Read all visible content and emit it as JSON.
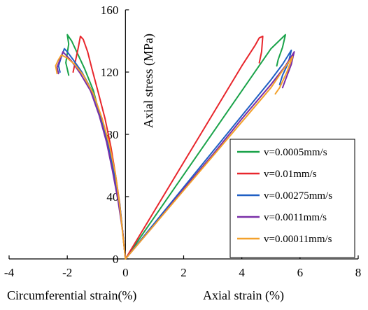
{
  "chart_data": {
    "type": "line",
    "title": "",
    "xlabel_left": "Circumferential strain(%)",
    "xlabel_right": "Axial strain  (%)",
    "ylabel": "Axial stress  (MPa)",
    "xlim": [
      -4,
      8
    ],
    "ylim": [
      0,
      160
    ],
    "x_ticks": [
      -4,
      -2,
      0,
      2,
      4,
      6,
      8
    ],
    "x_tick_labels": [
      "-4",
      "-2",
      "0",
      "2",
      "4",
      "6",
      "8"
    ],
    "y_ticks": [
      0,
      40,
      80,
      120,
      160
    ],
    "y_tick_labels": [
      "0",
      "40",
      "80",
      "120",
      "160"
    ],
    "grid": false,
    "legend_position": "center-right",
    "series": [
      {
        "name": "v=0.0005mm/s",
        "color": "#1aa34a",
        "axial": [
          [
            0,
            0
          ],
          [
            1,
            27
          ],
          [
            2,
            54
          ],
          [
            3,
            81
          ],
          [
            4,
            108
          ],
          [
            5,
            135
          ],
          [
            5.5,
            144
          ],
          [
            5.4,
            136
          ],
          [
            5.25,
            128
          ],
          [
            5.2,
            124
          ]
        ],
        "circumferential": [
          [
            0,
            0
          ],
          [
            -0.1,
            18
          ],
          [
            -0.2,
            35
          ],
          [
            -0.4,
            55
          ],
          [
            -0.6,
            72
          ],
          [
            -0.85,
            90
          ],
          [
            -1.1,
            108
          ],
          [
            -1.4,
            122
          ],
          [
            -1.65,
            132
          ],
          [
            -1.85,
            140
          ],
          [
            -2,
            144
          ],
          [
            -1.95,
            138
          ],
          [
            -2.05,
            126
          ],
          [
            -1.95,
            118
          ]
        ]
      },
      {
        "name": "v=0.01mm/s",
        "color": "#e8262c",
        "axial": [
          [
            0,
            0
          ],
          [
            1,
            31
          ],
          [
            2,
            62
          ],
          [
            3,
            93
          ],
          [
            4,
            124
          ],
          [
            4.45,
            137
          ],
          [
            4.6,
            142
          ],
          [
            4.72,
            143
          ],
          [
            4.68,
            133
          ],
          [
            4.6,
            126
          ]
        ],
        "circumferential": [
          [
            0,
            0
          ],
          [
            -0.1,
            18
          ],
          [
            -0.2,
            36
          ],
          [
            -0.35,
            55
          ],
          [
            -0.5,
            72
          ],
          [
            -0.7,
            90
          ],
          [
            -0.95,
            108
          ],
          [
            -1.15,
            122
          ],
          [
            -1.3,
            133
          ],
          [
            -1.45,
            141
          ],
          [
            -1.55,
            143
          ],
          [
            -1.62,
            136
          ],
          [
            -1.72,
            127
          ],
          [
            -1.8,
            120
          ]
        ]
      },
      {
        "name": "v=0.00275mm/s",
        "color": "#1f5fc4",
        "axial": [
          [
            0,
            0
          ],
          [
            1,
            23
          ],
          [
            2,
            46
          ],
          [
            3,
            69
          ],
          [
            4,
            92
          ],
          [
            5,
            115
          ],
          [
            5.4,
            125
          ],
          [
            5.7,
            134
          ],
          [
            5.6,
            126
          ],
          [
            5.4,
            118
          ],
          [
            5.3,
            112
          ]
        ],
        "circumferential": [
          [
            0,
            0
          ],
          [
            -0.1,
            18
          ],
          [
            -0.2,
            36
          ],
          [
            -0.4,
            56
          ],
          [
            -0.6,
            74
          ],
          [
            -0.85,
            92
          ],
          [
            -1.15,
            108
          ],
          [
            -1.5,
            120
          ],
          [
            -1.8,
            128
          ],
          [
            -2,
            133
          ],
          [
            -2.1,
            135
          ],
          [
            -2.2,
            130
          ],
          [
            -2.3,
            124
          ],
          [
            -2.25,
            120
          ]
        ]
      },
      {
        "name": "v=0.0011mm/s",
        "color": "#7a2fa8",
        "axial": [
          [
            0,
            0
          ],
          [
            1,
            22
          ],
          [
            2,
            45
          ],
          [
            3,
            67
          ],
          [
            4,
            90
          ],
          [
            5,
            112
          ],
          [
            5.5,
            124
          ],
          [
            5.8,
            133
          ],
          [
            5.7,
            125
          ],
          [
            5.5,
            115
          ],
          [
            5.4,
            110
          ]
        ],
        "circumferential": [
          [
            0,
            0
          ],
          [
            -0.1,
            18
          ],
          [
            -0.25,
            37
          ],
          [
            -0.45,
            57
          ],
          [
            -0.65,
            75
          ],
          [
            -0.9,
            92
          ],
          [
            -1.2,
            108
          ],
          [
            -1.55,
            119
          ],
          [
            -1.85,
            127
          ],
          [
            -2.05,
            131
          ],
          [
            -2.15,
            133
          ],
          [
            -2.25,
            128
          ],
          [
            -2.35,
            123
          ],
          [
            -2.3,
            119
          ]
        ]
      },
      {
        "name": "v=0.00011mm/s",
        "color": "#f3a12b",
        "axial": [
          [
            0,
            0
          ],
          [
            1,
            22
          ],
          [
            2,
            44
          ],
          [
            3,
            66
          ],
          [
            4,
            88
          ],
          [
            5,
            110
          ],
          [
            5.4,
            121
          ],
          [
            5.75,
            130
          ],
          [
            5.55,
            120
          ],
          [
            5.3,
            110
          ],
          [
            5.15,
            106
          ]
        ],
        "circumferential": [
          [
            0,
            0
          ],
          [
            -0.1,
            17
          ],
          [
            -0.2,
            35
          ],
          [
            -0.35,
            55
          ],
          [
            -0.55,
            73
          ],
          [
            -0.8,
            90
          ],
          [
            -1.1,
            106
          ],
          [
            -1.45,
            118
          ],
          [
            -1.75,
            125
          ],
          [
            -2,
            129
          ],
          [
            -2.2,
            131
          ],
          [
            -2.3,
            128
          ],
          [
            -2.4,
            124
          ],
          [
            -2.35,
            119
          ]
        ]
      }
    ]
  }
}
